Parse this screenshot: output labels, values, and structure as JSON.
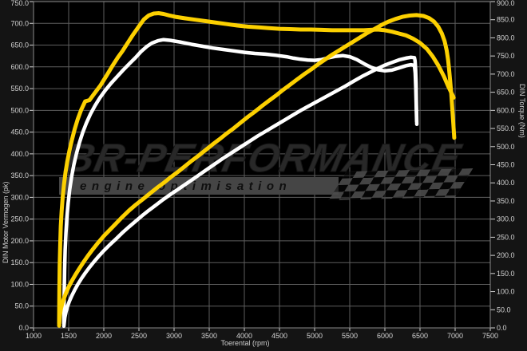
{
  "watermark": {
    "brand": "BR-PERFORMANCE",
    "tagline": "engine optimisation"
  },
  "colors": {
    "background": "#141414",
    "plot_background": "#000000",
    "grid": "#5e5e5e",
    "plot_border": "#8a8a8a",
    "x_axis_line": "#aaaaaa",
    "tick_text": "#d4d4d4",
    "tuned_series": "#fcd000",
    "stock_series": "#ffffff",
    "watermark_text": "#282828",
    "band_background": "#454545",
    "band_text": "#0f0f0f",
    "checker": "#4a4a4a"
  },
  "chart_data": {
    "type": "line",
    "title": "",
    "xlabel": "Toerental (rpm)",
    "ylabel_left": "DIN Motor Vermogen (pk)",
    "ylabel_right": "DIN Torque (Nm)",
    "x_range": [
      1000,
      7500
    ],
    "x_tick_step": 500,
    "y_left_range": [
      0,
      750
    ],
    "y_left_tick_step": 50,
    "y_right_range": [
      0,
      900
    ],
    "y_right_tick_step": 50,
    "grid": true,
    "tick_format_y": "one-decimal",
    "legend": "none",
    "series": [
      {
        "name": "stock-torque",
        "color": "#ffffff",
        "axis": "right",
        "unit": "Nm",
        "width": 4.5,
        "points": [
          [
            1432,
            12
          ],
          [
            1436,
            95
          ],
          [
            1442,
            160
          ],
          [
            1450,
            215
          ],
          [
            1461,
            262
          ],
          [
            1475,
            305
          ],
          [
            1493,
            345
          ],
          [
            1515,
            382
          ],
          [
            1542,
            417
          ],
          [
            1574,
            450
          ],
          [
            1611,
            481
          ],
          [
            1653,
            511
          ],
          [
            1700,
            539
          ],
          [
            1752,
            565
          ],
          [
            1810,
            590
          ],
          [
            1875,
            613
          ],
          [
            1945,
            635
          ],
          [
            2020,
            655
          ],
          [
            2100,
            674
          ],
          [
            2185,
            692
          ],
          [
            2270,
            710
          ],
          [
            2360,
            728
          ],
          [
            2450,
            745
          ],
          [
            2530,
            762
          ],
          [
            2610,
            776
          ],
          [
            2690,
            786
          ],
          [
            2770,
            792
          ],
          [
            2850,
            795
          ],
          [
            2950,
            793
          ],
          [
            3100,
            788
          ],
          [
            3250,
            782
          ],
          [
            3400,
            777
          ],
          [
            3550,
            772
          ],
          [
            3700,
            768
          ],
          [
            3850,
            764
          ],
          [
            4000,
            760
          ],
          [
            4150,
            757
          ],
          [
            4300,
            755
          ],
          [
            4450,
            752
          ],
          [
            4600,
            748
          ],
          [
            4700,
            744
          ],
          [
            4800,
            741
          ],
          [
            4900,
            739
          ],
          [
            5000,
            738
          ],
          [
            5100,
            740
          ],
          [
            5200,
            745
          ],
          [
            5300,
            749
          ],
          [
            5400,
            751
          ],
          [
            5500,
            748
          ],
          [
            5600,
            740
          ],
          [
            5700,
            729
          ],
          [
            5800,
            719
          ],
          [
            5900,
            712
          ],
          [
            6000,
            709
          ],
          [
            6100,
            711
          ],
          [
            6200,
            717
          ],
          [
            6300,
            723
          ],
          [
            6370,
            726
          ],
          [
            6420,
            724
          ],
          [
            6432,
            703
          ],
          [
            6440,
            663
          ],
          [
            6446,
            620
          ],
          [
            6450,
            585
          ],
          [
            6452,
            570
          ]
        ]
      },
      {
        "name": "stock-power",
        "color": "#ffffff",
        "axis": "left",
        "unit": "pk",
        "width": 4.5,
        "points": [
          [
            1432,
            4
          ],
          [
            1445,
            24
          ],
          [
            1462,
            37
          ],
          [
            1485,
            50
          ],
          [
            1512,
            62
          ],
          [
            1545,
            74
          ],
          [
            1585,
            87
          ],
          [
            1630,
            100
          ],
          [
            1680,
            113
          ],
          [
            1735,
            126
          ],
          [
            1795,
            139
          ],
          [
            1860,
            152
          ],
          [
            1930,
            165
          ],
          [
            2005,
            178
          ],
          [
            2085,
            191
          ],
          [
            2170,
            204
          ],
          [
            2260,
            218
          ],
          [
            2350,
            231
          ],
          [
            2445,
            244
          ],
          [
            2540,
            257
          ],
          [
            2640,
            270
          ],
          [
            2740,
            282
          ],
          [
            2845,
            295
          ],
          [
            2950,
            307
          ],
          [
            3070,
            320
          ],
          [
            3190,
            333
          ],
          [
            3315,
            347
          ],
          [
            3440,
            361
          ],
          [
            3565,
            375
          ],
          [
            3690,
            389
          ],
          [
            3815,
            402
          ],
          [
            3940,
            415
          ],
          [
            4065,
            428
          ],
          [
            4190,
            441
          ],
          [
            4315,
            453
          ],
          [
            4440,
            465
          ],
          [
            4565,
            477
          ],
          [
            4690,
            489
          ],
          [
            4815,
            501
          ],
          [
            4940,
            512
          ],
          [
            5065,
            523
          ],
          [
            5190,
            534
          ],
          [
            5315,
            545
          ],
          [
            5440,
            556
          ],
          [
            5565,
            568
          ],
          [
            5675,
            578
          ],
          [
            5785,
            587
          ],
          [
            5895,
            596
          ],
          [
            6000,
            604
          ],
          [
            6100,
            610
          ],
          [
            6200,
            616
          ],
          [
            6300,
            620
          ],
          [
            6370,
            622
          ],
          [
            6420,
            621
          ],
          [
            6430,
            614
          ],
          [
            6438,
            594
          ],
          [
            6444,
            562
          ],
          [
            6448,
            524
          ],
          [
            6452,
            486
          ],
          [
            6454,
            468
          ]
        ]
      },
      {
        "name": "tuned-torque",
        "color": "#fcd000",
        "axis": "right",
        "unit": "Nm",
        "width": 5,
        "points": [
          [
            1364,
            12
          ],
          [
            1367,
            100
          ],
          [
            1372,
            170
          ],
          [
            1379,
            230
          ],
          [
            1388,
            280
          ],
          [
            1400,
            322
          ],
          [
            1415,
            360
          ],
          [
            1433,
            395
          ],
          [
            1455,
            428
          ],
          [
            1480,
            458
          ],
          [
            1510,
            488
          ],
          [
            1545,
            518
          ],
          [
            1585,
            548
          ],
          [
            1630,
            576
          ],
          [
            1680,
            602
          ],
          [
            1735,
            625
          ],
          [
            1795,
            628
          ],
          [
            1860,
            645
          ],
          [
            1950,
            668
          ],
          [
            2040,
            696
          ],
          [
            2120,
            722
          ],
          [
            2200,
            746
          ],
          [
            2270,
            765
          ],
          [
            2340,
            786
          ],
          [
            2420,
            810
          ],
          [
            2500,
            832
          ],
          [
            2570,
            851
          ],
          [
            2640,
            862
          ],
          [
            2710,
            867
          ],
          [
            2780,
            868
          ],
          [
            2850,
            866
          ],
          [
            2930,
            862
          ],
          [
            3020,
            858
          ],
          [
            3150,
            854
          ],
          [
            3300,
            850
          ],
          [
            3450,
            846
          ],
          [
            3600,
            842
          ],
          [
            3750,
            838
          ],
          [
            3900,
            834
          ],
          [
            4050,
            831
          ],
          [
            4200,
            829
          ],
          [
            4350,
            827
          ],
          [
            4500,
            825
          ],
          [
            4650,
            824
          ],
          [
            4800,
            823
          ],
          [
            4950,
            823
          ],
          [
            5100,
            822
          ],
          [
            5250,
            821
          ],
          [
            5400,
            821
          ],
          [
            5550,
            821
          ],
          [
            5700,
            821
          ],
          [
            5800,
            822
          ],
          [
            5900,
            823
          ],
          [
            6000,
            821
          ],
          [
            6100,
            817
          ],
          [
            6200,
            812
          ],
          [
            6300,
            807
          ],
          [
            6400,
            798
          ],
          [
            6500,
            786
          ],
          [
            6600,
            769
          ],
          [
            6680,
            749
          ],
          [
            6760,
            724
          ],
          [
            6840,
            694
          ],
          [
            6900,
            667
          ],
          [
            6950,
            647
          ],
          [
            6980,
            635
          ]
        ]
      },
      {
        "name": "tuned-power",
        "color": "#fcd000",
        "axis": "left",
        "unit": "pk",
        "width": 5,
        "points": [
          [
            1364,
            5
          ],
          [
            1375,
            28
          ],
          [
            1390,
            44
          ],
          [
            1410,
            57
          ],
          [
            1435,
            69
          ],
          [
            1465,
            81
          ],
          [
            1500,
            94
          ],
          [
            1545,
            108
          ],
          [
            1595,
            122
          ],
          [
            1650,
            136
          ],
          [
            1710,
            151
          ],
          [
            1775,
            166
          ],
          [
            1845,
            181
          ],
          [
            1920,
            196
          ],
          [
            2000,
            211
          ],
          [
            2090,
            226
          ],
          [
            2180,
            241
          ],
          [
            2270,
            256
          ],
          [
            2360,
            270
          ],
          [
            2455,
            283
          ],
          [
            2550,
            295
          ],
          [
            2650,
            308
          ],
          [
            2750,
            321
          ],
          [
            2850,
            333
          ],
          [
            2950,
            346
          ],
          [
            3050,
            358
          ],
          [
            3150,
            371
          ],
          [
            3250,
            384
          ],
          [
            3350,
            396
          ],
          [
            3450,
            409
          ],
          [
            3550,
            422
          ],
          [
            3650,
            434
          ],
          [
            3750,
            447
          ],
          [
            3850,
            459
          ],
          [
            3950,
            472
          ],
          [
            4050,
            485
          ],
          [
            4150,
            497
          ],
          [
            4250,
            510
          ],
          [
            4350,
            522
          ],
          [
            4450,
            534
          ],
          [
            4550,
            547
          ],
          [
            4650,
            559
          ],
          [
            4750,
            571
          ],
          [
            4850,
            583
          ],
          [
            4950,
            594
          ],
          [
            5050,
            606
          ],
          [
            5150,
            617
          ],
          [
            5250,
            628
          ],
          [
            5350,
            638
          ],
          [
            5450,
            648
          ],
          [
            5550,
            658
          ],
          [
            5650,
            668
          ],
          [
            5750,
            678
          ],
          [
            5850,
            687
          ],
          [
            5950,
            696
          ],
          [
            6050,
            704
          ],
          [
            6150,
            710
          ],
          [
            6250,
            715
          ],
          [
            6350,
            718
          ],
          [
            6450,
            719
          ],
          [
            6550,
            717
          ],
          [
            6630,
            712
          ],
          [
            6700,
            704
          ],
          [
            6760,
            692
          ],
          [
            6810,
            677
          ],
          [
            6850,
            659
          ],
          [
            6880,
            638
          ],
          [
            6900,
            616
          ],
          [
            6915,
            593
          ],
          [
            6930,
            567
          ],
          [
            6945,
            537
          ],
          [
            6960,
            503
          ],
          [
            6975,
            467
          ],
          [
            6988,
            437
          ]
        ]
      }
    ]
  }
}
